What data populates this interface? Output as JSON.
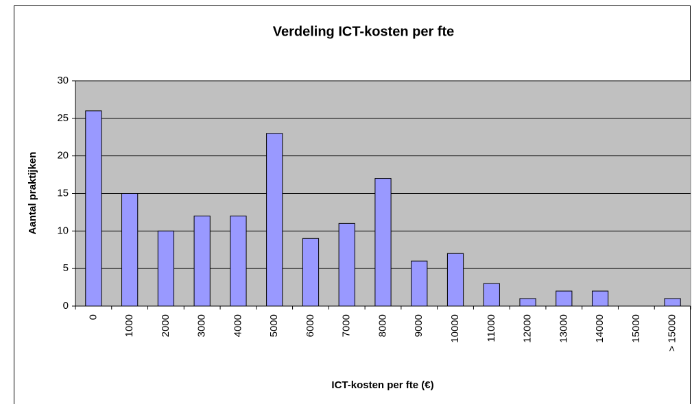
{
  "chart_data": {
    "type": "bar",
    "title": "Verdeling ICT-kosten per fte",
    "x_label": "ICT-kosten per fte (€)",
    "y_label": "Aantal praktijken",
    "categories": [
      "0",
      "1000",
      "2000",
      "3000",
      "4000",
      "5000",
      "6000",
      "7000",
      "8000",
      "9000",
      "10000",
      "11000",
      "12000",
      "13000",
      "14000",
      "15000",
      "> 15000"
    ],
    "values": [
      26,
      15,
      10,
      12,
      12,
      23,
      9,
      11,
      17,
      6,
      7,
      3,
      1,
      2,
      2,
      0,
      1
    ],
    "color": "#9999ff",
    "ylim": [
      0,
      30
    ],
    "yticks": [
      0,
      5,
      10,
      15,
      20,
      25,
      30
    ],
    "grid": true
  }
}
